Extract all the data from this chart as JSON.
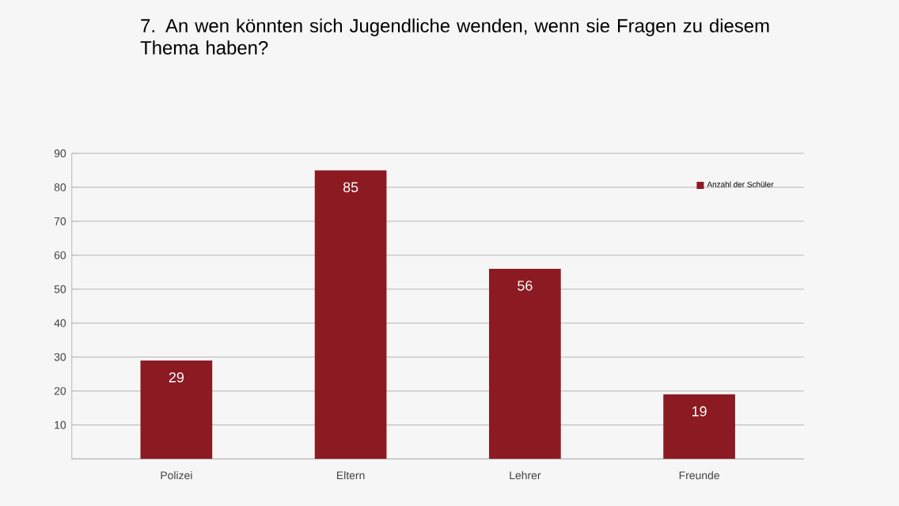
{
  "chart_data": {
    "type": "bar",
    "title": "7.  An wen könnten sich Jugendliche wenden, wenn sie Fragen zu diesem Thema haben?",
    "categories": [
      "Polizei",
      "Eltern",
      "Lehrer",
      "Freunde"
    ],
    "series": [
      {
        "name": "Anzahl der Schüler",
        "color": "#8b1a22",
        "values": [
          29,
          85,
          56,
          19
        ]
      }
    ],
    "ylim": [
      0,
      90
    ],
    "yticks": [
      {
        "value": 0,
        "label": null
      },
      10,
      20,
      30,
      40,
      50,
      60,
      70,
      80,
      90
    ],
    "grid": "y",
    "legend": "top right",
    "data_labels": true
  }
}
